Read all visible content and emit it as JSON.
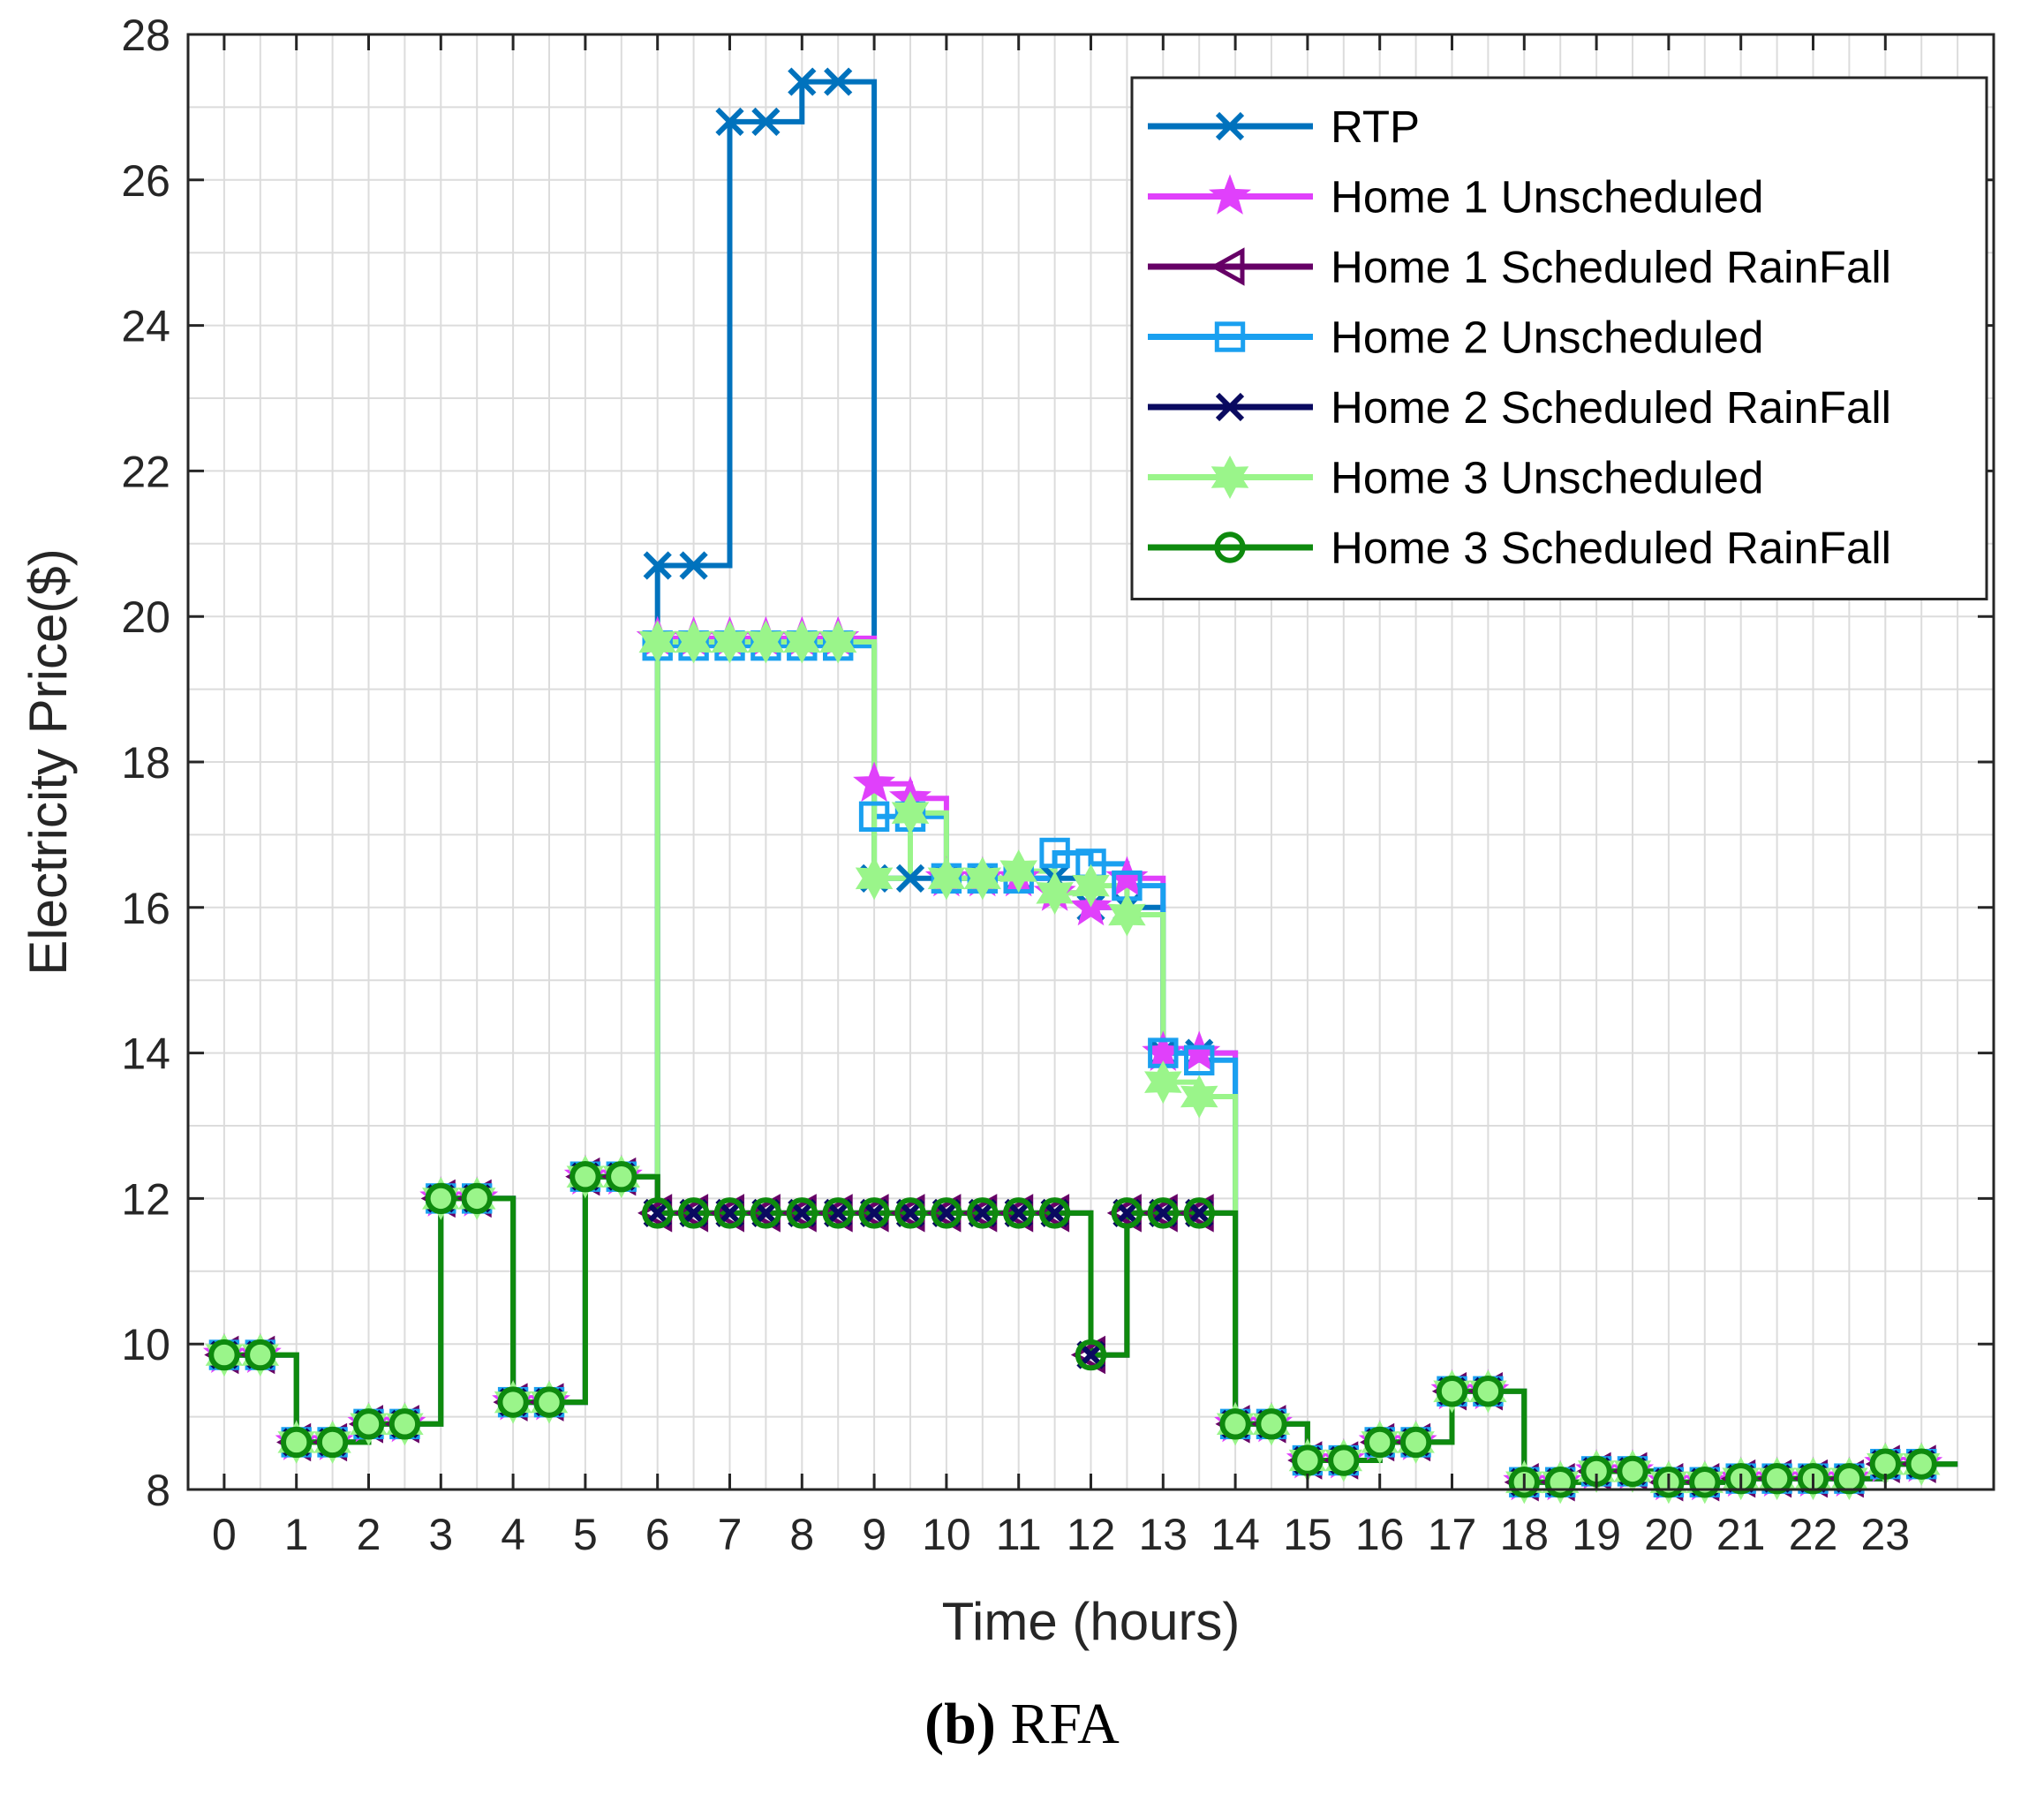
{
  "chart_data": {
    "type": "line",
    "style": "stairs",
    "title": "",
    "xlabel": "Time (hours)",
    "ylabel": "Electricity Price($)",
    "xlim": [
      -0.5,
      24.5
    ],
    "ylim": [
      8,
      28
    ],
    "x_ticks": [
      "0",
      "1",
      "2",
      "3",
      "4",
      "5",
      "6",
      "7",
      "8",
      "9",
      "10",
      "11",
      "12",
      "13",
      "14",
      "15",
      "16",
      "17",
      "18",
      "19",
      "20",
      "21",
      "22",
      "23"
    ],
    "y_ticks": [
      "8",
      "10",
      "12",
      "14",
      "16",
      "18",
      "20",
      "22",
      "24",
      "26",
      "28"
    ],
    "grid": true,
    "legend_position": "top-right",
    "x": [
      0,
      0.5,
      1,
      1.5,
      2,
      2.5,
      3,
      3.5,
      4,
      4.5,
      5,
      5.5,
      6,
      6.5,
      7,
      7.5,
      8,
      8.5,
      9,
      9.5,
      10,
      10.5,
      11,
      11.5,
      12,
      12.5,
      13,
      13.5,
      14,
      14.5,
      15,
      15.5,
      16,
      16.5,
      17,
      17.5,
      18,
      18.5,
      19,
      19.5,
      20,
      20.5,
      21,
      21.5,
      22,
      22.5,
      23,
      23.5
    ],
    "series": [
      {
        "name": "RTP",
        "color": "#0072BD",
        "marker": "x",
        "values": [
          9.85,
          9.85,
          8.65,
          8.65,
          8.9,
          8.9,
          12.0,
          12.0,
          9.2,
          9.2,
          12.3,
          12.3,
          20.7,
          20.7,
          26.8,
          26.8,
          27.35,
          27.35,
          16.4,
          16.4,
          16.4,
          16.4,
          16.4,
          16.4,
          16.0,
          16.0,
          14.0,
          14.0,
          8.9,
          8.9,
          8.4,
          8.4,
          8.65,
          8.65,
          9.35,
          9.35,
          8.1,
          8.1,
          8.25,
          8.25,
          8.1,
          8.1,
          8.15,
          8.15,
          8.15,
          8.15,
          8.35,
          8.35
        ]
      },
      {
        "name": "Home 1 Unscheduled",
        "color": "#E040FB",
        "marker": "star",
        "values": [
          9.85,
          9.85,
          8.65,
          8.65,
          8.9,
          8.9,
          12.0,
          12.0,
          9.2,
          9.2,
          12.3,
          12.3,
          19.7,
          19.7,
          19.7,
          19.7,
          19.7,
          19.7,
          17.7,
          17.5,
          16.4,
          16.4,
          16.4,
          16.2,
          16.0,
          16.4,
          14.0,
          14.0,
          8.9,
          8.9,
          8.4,
          8.4,
          8.65,
          8.65,
          9.35,
          9.35,
          8.1,
          8.1,
          8.25,
          8.25,
          8.1,
          8.1,
          8.15,
          8.15,
          8.15,
          8.15,
          8.35,
          8.35
        ]
      },
      {
        "name": "Home 1 Scheduled RainFall",
        "color": "#660066",
        "marker": "triangle-left",
        "values": [
          9.85,
          9.85,
          8.65,
          8.65,
          8.9,
          8.9,
          12.0,
          12.0,
          9.2,
          9.2,
          12.3,
          12.3,
          11.8,
          11.8,
          11.8,
          11.8,
          11.8,
          11.8,
          11.8,
          11.8,
          11.8,
          11.8,
          11.8,
          11.8,
          9.85,
          11.8,
          11.8,
          11.8,
          8.9,
          8.9,
          8.4,
          8.4,
          8.65,
          8.65,
          9.35,
          9.35,
          8.1,
          8.1,
          8.25,
          8.25,
          8.1,
          8.1,
          8.15,
          8.15,
          8.15,
          8.15,
          8.35,
          8.35
        ]
      },
      {
        "name": "Home 2 Unscheduled",
        "color": "#1AA0F0",
        "marker": "square",
        "values": [
          9.85,
          9.85,
          8.65,
          8.65,
          8.9,
          8.9,
          12.0,
          12.0,
          9.2,
          9.2,
          12.3,
          12.3,
          19.6,
          19.6,
          19.6,
          19.6,
          19.6,
          19.6,
          17.25,
          17.25,
          16.4,
          16.4,
          16.4,
          16.75,
          16.6,
          16.3,
          14.0,
          13.9,
          8.9,
          8.9,
          8.4,
          8.4,
          8.65,
          8.65,
          9.35,
          9.35,
          8.1,
          8.1,
          8.25,
          8.25,
          8.1,
          8.1,
          8.15,
          8.15,
          8.15,
          8.15,
          8.35,
          8.35
        ]
      },
      {
        "name": "Home 2 Scheduled RainFall",
        "color": "#0A0A60",
        "marker": "x",
        "values": [
          9.85,
          9.85,
          8.65,
          8.65,
          8.9,
          8.9,
          12.0,
          12.0,
          9.2,
          9.2,
          12.3,
          12.3,
          11.8,
          11.8,
          11.8,
          11.8,
          11.8,
          11.8,
          11.8,
          11.8,
          11.8,
          11.8,
          11.8,
          11.8,
          9.85,
          11.8,
          11.8,
          11.8,
          8.9,
          8.9,
          8.4,
          8.4,
          8.65,
          8.65,
          9.35,
          9.35,
          8.1,
          8.1,
          8.25,
          8.25,
          8.1,
          8.1,
          8.15,
          8.15,
          8.15,
          8.15,
          8.35,
          8.35
        ]
      },
      {
        "name": "Home 3 Unscheduled",
        "color": "#9AF58A",
        "marker": "hexagram",
        "values": [
          9.85,
          9.85,
          8.65,
          8.65,
          8.9,
          8.9,
          12.0,
          12.0,
          9.2,
          9.2,
          12.3,
          12.3,
          19.65,
          19.65,
          19.65,
          19.65,
          19.65,
          19.65,
          16.4,
          17.3,
          16.4,
          16.4,
          16.5,
          16.2,
          16.3,
          15.9,
          13.6,
          13.4,
          8.9,
          8.9,
          8.4,
          8.4,
          8.65,
          8.65,
          9.35,
          9.35,
          8.1,
          8.1,
          8.25,
          8.25,
          8.1,
          8.1,
          8.15,
          8.15,
          8.15,
          8.15,
          8.35,
          8.35
        ]
      },
      {
        "name": "Home 3 Scheduled RainFall",
        "color": "#0E8A0E",
        "marker": "circle",
        "values": [
          9.85,
          9.85,
          8.65,
          8.65,
          8.9,
          8.9,
          12.0,
          12.0,
          9.2,
          9.2,
          12.3,
          12.3,
          11.8,
          11.8,
          11.8,
          11.8,
          11.8,
          11.8,
          11.8,
          11.8,
          11.8,
          11.8,
          11.8,
          11.8,
          9.85,
          11.8,
          11.8,
          11.8,
          8.9,
          8.9,
          8.4,
          8.4,
          8.65,
          8.65,
          9.35,
          9.35,
          8.1,
          8.1,
          8.25,
          8.25,
          8.1,
          8.1,
          8.15,
          8.15,
          8.15,
          8.15,
          8.35,
          8.35
        ]
      }
    ]
  },
  "caption": {
    "letter": "(b)",
    "text": "RFA"
  }
}
